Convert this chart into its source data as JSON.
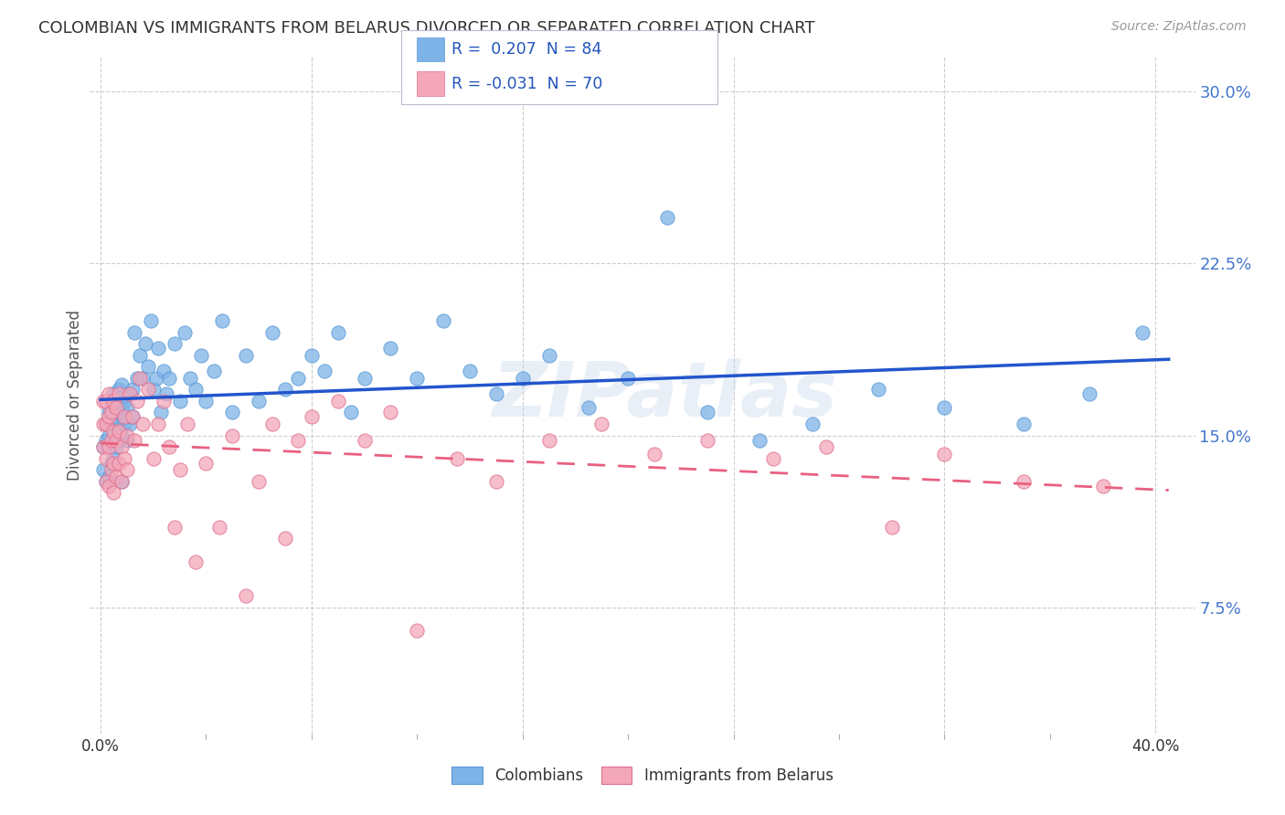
{
  "title": "COLOMBIAN VS IMMIGRANTS FROM BELARUS DIVORCED OR SEPARATED CORRELATION CHART",
  "source": "Source: ZipAtlas.com",
  "ylabel": "Divorced or Separated",
  "watermark": "ZIPatlas",
  "colombian_color": "#7EB3E8",
  "colombian_edge": "#5A9AD4",
  "belarus_color": "#F4A7B9",
  "belarus_edge": "#E07090",
  "trend_colombian_color": "#2255CC",
  "trend_belarus_color": "#E86080",
  "background_color": "#FFFFFF",
  "grid_color": "#CCCCCC",
  "ytick_color": "#4477CC",
  "ytick_vals": [
    0.075,
    0.15,
    0.225,
    0.3
  ],
  "ytick_labels": [
    "7.5%",
    "15.0%",
    "22.5%",
    "30.0%"
  ],
  "xlim": [
    -0.004,
    0.415
  ],
  "ylim": [
    0.02,
    0.315
  ],
  "colombians_x": [
    0.001,
    0.001,
    0.002,
    0.002,
    0.002,
    0.003,
    0.003,
    0.003,
    0.004,
    0.004,
    0.004,
    0.005,
    0.005,
    0.005,
    0.006,
    0.006,
    0.006,
    0.007,
    0.007,
    0.007,
    0.008,
    0.008,
    0.008,
    0.009,
    0.009,
    0.01,
    0.01,
    0.011,
    0.011,
    0.012,
    0.012,
    0.013,
    0.014,
    0.015,
    0.016,
    0.017,
    0.018,
    0.019,
    0.02,
    0.021,
    0.022,
    0.023,
    0.024,
    0.025,
    0.026,
    0.028,
    0.03,
    0.032,
    0.034,
    0.036,
    0.038,
    0.04,
    0.043,
    0.046,
    0.05,
    0.055,
    0.06,
    0.065,
    0.07,
    0.075,
    0.08,
    0.085,
    0.09,
    0.095,
    0.1,
    0.11,
    0.12,
    0.13,
    0.14,
    0.15,
    0.16,
    0.17,
    0.185,
    0.2,
    0.215,
    0.23,
    0.25,
    0.27,
    0.295,
    0.32,
    0.35,
    0.375,
    0.395,
    0.008
  ],
  "colombians_y": [
    0.135,
    0.145,
    0.13,
    0.148,
    0.155,
    0.132,
    0.15,
    0.16,
    0.138,
    0.155,
    0.165,
    0.14,
    0.158,
    0.168,
    0.145,
    0.155,
    0.162,
    0.148,
    0.16,
    0.17,
    0.15,
    0.162,
    0.172,
    0.155,
    0.165,
    0.148,
    0.162,
    0.155,
    0.168,
    0.158,
    0.17,
    0.195,
    0.175,
    0.185,
    0.175,
    0.19,
    0.18,
    0.2,
    0.17,
    0.175,
    0.188,
    0.16,
    0.178,
    0.168,
    0.175,
    0.19,
    0.165,
    0.195,
    0.175,
    0.17,
    0.185,
    0.165,
    0.178,
    0.2,
    0.16,
    0.185,
    0.165,
    0.195,
    0.17,
    0.175,
    0.185,
    0.178,
    0.195,
    0.16,
    0.175,
    0.188,
    0.175,
    0.2,
    0.178,
    0.168,
    0.175,
    0.185,
    0.162,
    0.175,
    0.245,
    0.16,
    0.148,
    0.155,
    0.17,
    0.162,
    0.155,
    0.168,
    0.195,
    0.13
  ],
  "belarus_x": [
    0.001,
    0.001,
    0.001,
    0.002,
    0.002,
    0.002,
    0.002,
    0.003,
    0.003,
    0.003,
    0.003,
    0.004,
    0.004,
    0.004,
    0.005,
    0.005,
    0.005,
    0.005,
    0.006,
    0.006,
    0.006,
    0.007,
    0.007,
    0.007,
    0.008,
    0.008,
    0.009,
    0.009,
    0.01,
    0.01,
    0.011,
    0.012,
    0.013,
    0.014,
    0.015,
    0.016,
    0.018,
    0.02,
    0.022,
    0.024,
    0.026,
    0.028,
    0.03,
    0.033,
    0.036,
    0.04,
    0.045,
    0.05,
    0.055,
    0.06,
    0.065,
    0.07,
    0.075,
    0.08,
    0.09,
    0.1,
    0.11,
    0.12,
    0.135,
    0.15,
    0.17,
    0.19,
    0.21,
    0.23,
    0.255,
    0.275,
    0.3,
    0.32,
    0.35,
    0.38
  ],
  "belarus_y": [
    0.145,
    0.155,
    0.165,
    0.13,
    0.14,
    0.155,
    0.165,
    0.128,
    0.145,
    0.158,
    0.168,
    0.135,
    0.148,
    0.16,
    0.125,
    0.138,
    0.152,
    0.165,
    0.132,
    0.148,
    0.162,
    0.138,
    0.152,
    0.168,
    0.13,
    0.145,
    0.14,
    0.158,
    0.135,
    0.15,
    0.168,
    0.158,
    0.148,
    0.165,
    0.175,
    0.155,
    0.17,
    0.14,
    0.155,
    0.165,
    0.145,
    0.11,
    0.135,
    0.155,
    0.095,
    0.138,
    0.11,
    0.15,
    0.08,
    0.13,
    0.155,
    0.105,
    0.148,
    0.158,
    0.165,
    0.148,
    0.16,
    0.065,
    0.14,
    0.13,
    0.148,
    0.155,
    0.142,
    0.148,
    0.14,
    0.145,
    0.11,
    0.142,
    0.13,
    0.128
  ]
}
